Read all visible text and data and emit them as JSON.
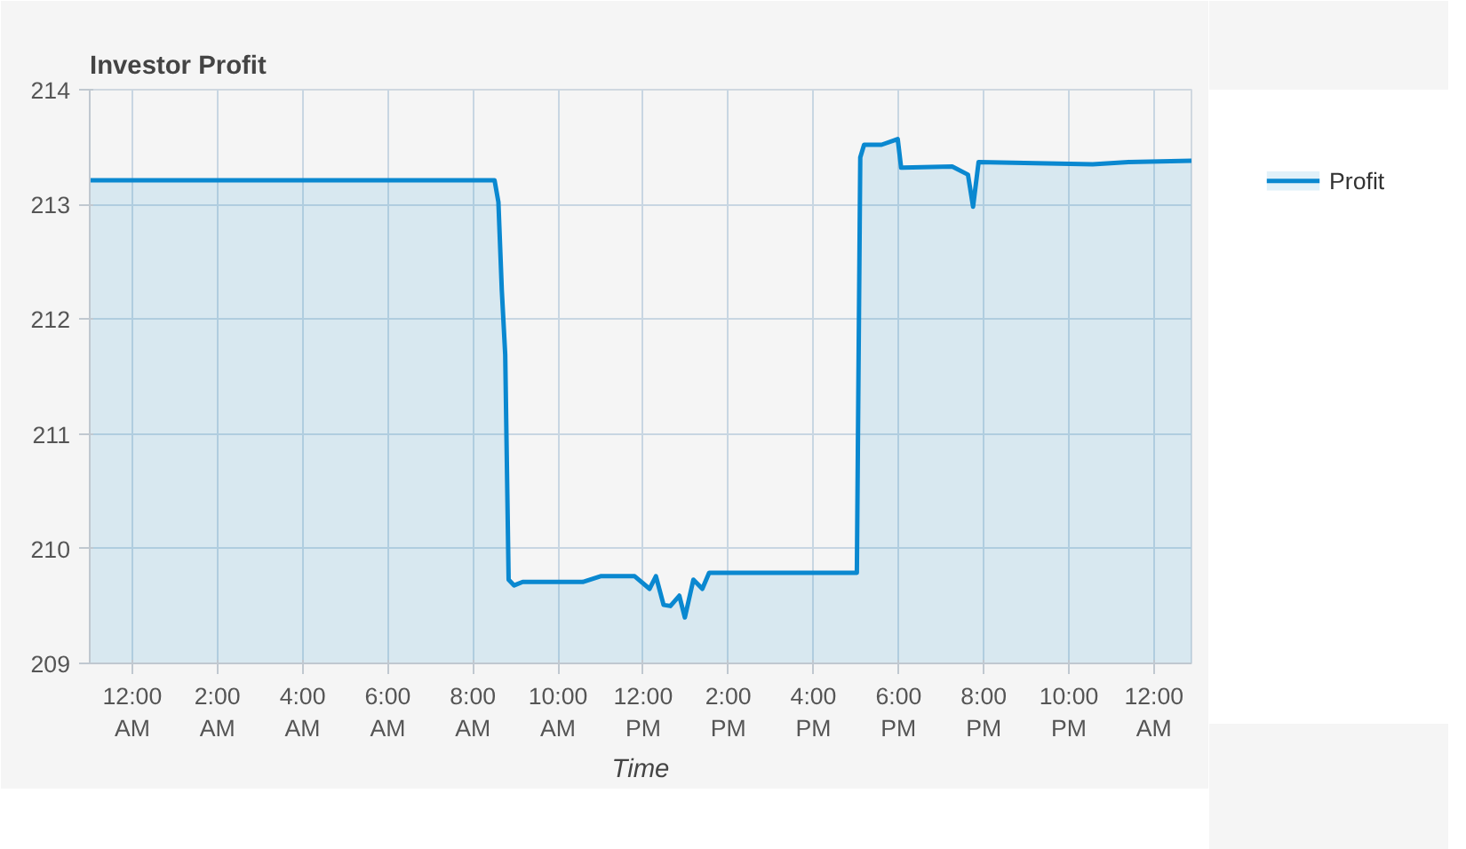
{
  "chart_data": {
    "type": "area",
    "title": "Investor Profit",
    "xlabel": "Time",
    "x": [
      -0.99,
      8.51,
      8.6,
      8.68,
      8.76,
      8.84,
      8.97,
      9.17,
      10.58,
      11.0,
      11.8,
      12.15,
      12.3,
      12.48,
      12.64,
      12.85,
      12.98,
      13.18,
      13.39,
      13.55,
      17.02,
      17.1,
      17.19,
      17.6,
      17.98,
      18.06,
      19.26,
      19.63,
      19.75,
      19.88,
      22.56,
      23.4,
      24.88
    ],
    "series": [
      {
        "name": "Profit",
        "color": "#0a88d0",
        "values": [
          213.21,
          213.21,
          213.02,
          212.25,
          211.69,
          209.73,
          209.68,
          209.71,
          209.71,
          209.76,
          209.76,
          209.65,
          209.76,
          209.51,
          209.5,
          209.59,
          209.4,
          209.73,
          209.65,
          209.79,
          209.79,
          213.41,
          213.52,
          213.52,
          213.57,
          213.32,
          213.33,
          213.26,
          212.98,
          213.37,
          213.35,
          213.37,
          213.38
        ]
      }
    ],
    "xlim": [
      -1,
      24.88
    ],
    "xticks": [
      {
        "value": 0,
        "label": "12:00\nAM"
      },
      {
        "value": 2,
        "label": "2:00\nAM"
      },
      {
        "value": 4,
        "label": "4:00\nAM"
      },
      {
        "value": 6,
        "label": "6:00\nAM"
      },
      {
        "value": 8,
        "label": "8:00\nAM"
      },
      {
        "value": 10,
        "label": "10:00\nAM"
      },
      {
        "value": 12,
        "label": "12:00\nPM"
      },
      {
        "value": 14,
        "label": "2:00\nPM"
      },
      {
        "value": 16,
        "label": "4:00\nPM"
      },
      {
        "value": 18,
        "label": "6:00\nPM"
      },
      {
        "value": 20,
        "label": "8:00\nPM"
      },
      {
        "value": 22,
        "label": "10:00\nPM"
      },
      {
        "value": 24,
        "label": "12:00\nAM"
      }
    ],
    "ylim": [
      209,
      214
    ],
    "yticks": [
      209,
      210,
      211,
      212,
      213,
      214
    ],
    "grid": true,
    "legend": "top right",
    "line_style": "solid"
  }
}
